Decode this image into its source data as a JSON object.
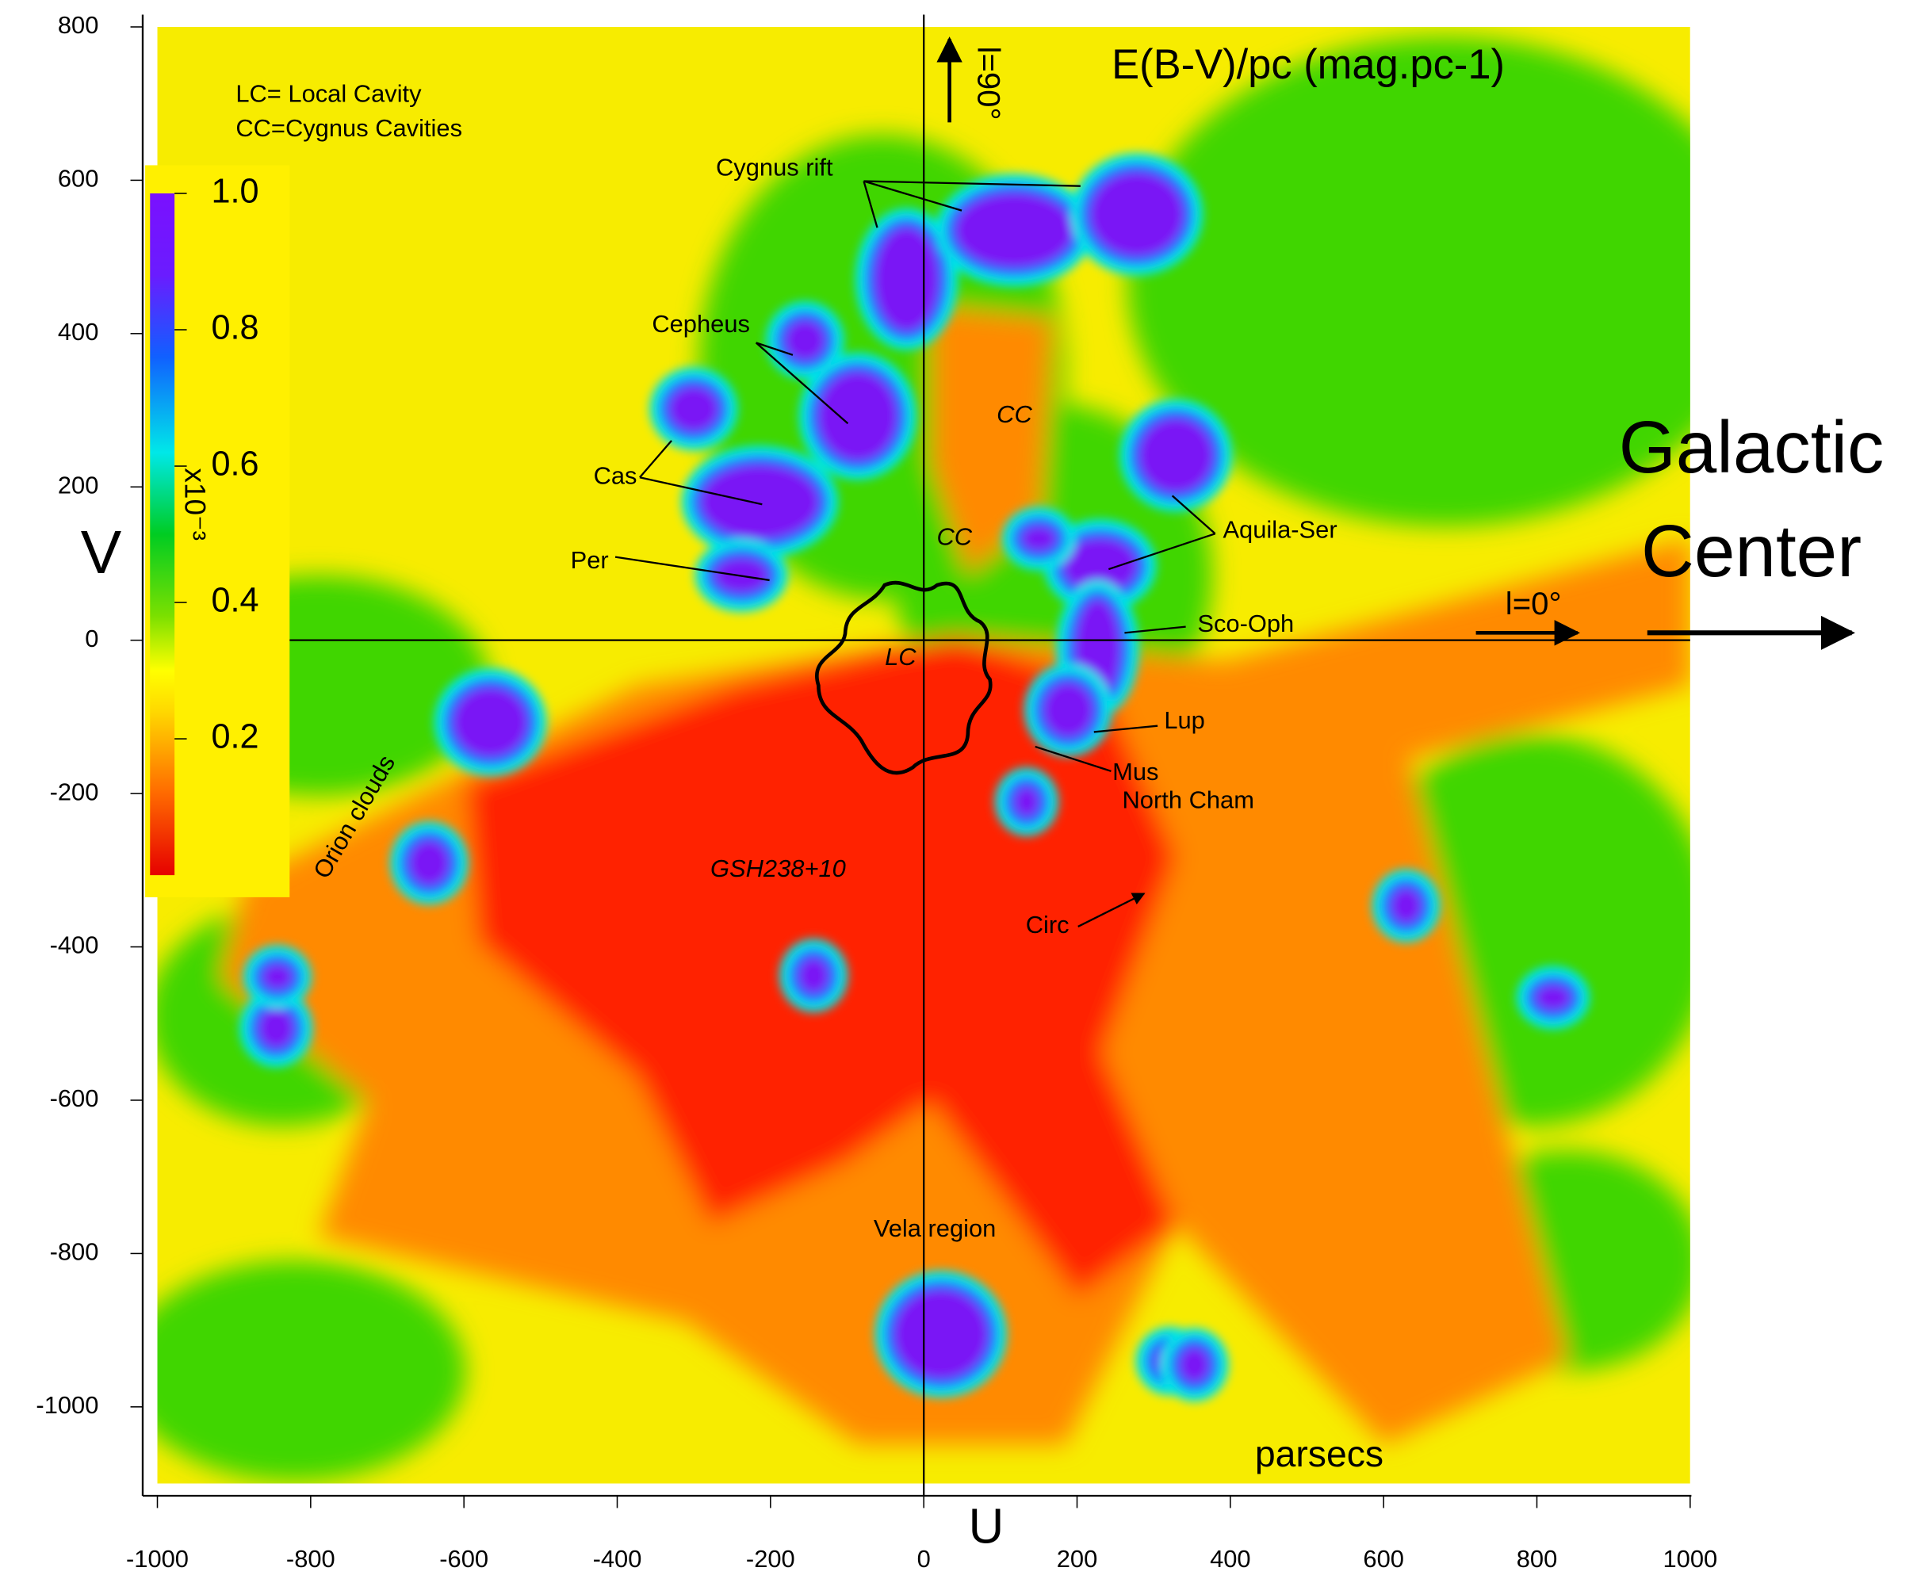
{
  "chart_data": {
    "type": "heatmap",
    "title": "E(B-V)/pc  (mag.pc-1)",
    "xlabel": "U",
    "ylabel": "V",
    "xlim": [
      -1000,
      1000
    ],
    "ylim": [
      -1100,
      800
    ],
    "xticks": [
      -1000,
      -800,
      -600,
      -400,
      -200,
      0,
      200,
      400,
      600,
      800,
      1000
    ],
    "yticks": [
      -1000,
      -800,
      -600,
      -400,
      -200,
      0,
      200,
      400,
      600,
      800
    ],
    "colorbar": {
      "lim": [
        0,
        1
      ],
      "ticks": [
        0.2,
        0.4,
        0.6,
        0.8,
        {
          "value": 1,
          "label": "1.0"
        }
      ],
      "label": "x10⁻³"
    },
    "legend_notes": [
      "LC= Local Cavity",
      "CC=Cygnus Cavities"
    ],
    "direction_labels": [
      "l=90°",
      "l=0°"
    ],
    "galactic_center": [
      "Galactic",
      "Center"
    ],
    "unit_label": "parsecs",
    "annotations": [
      "Cygnus rift",
      "Cepheus",
      "Cas",
      "Per",
      "CC",
      "CC",
      "LC",
      "Aquila-Ser",
      "Sco-Oph",
      "Lup",
      "Mus",
      "North Cham",
      "GSH238+10",
      "Circ",
      "Orion clouds",
      "Vela region"
    ]
  }
}
